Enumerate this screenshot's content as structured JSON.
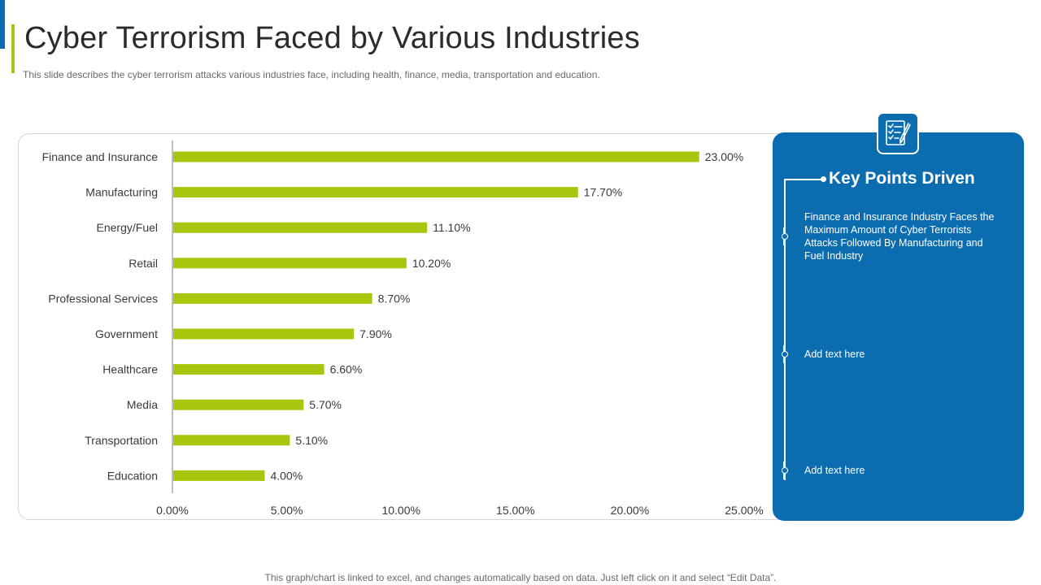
{
  "header": {
    "title": "Cyber Terrorism Faced by Various Industries",
    "subtitle": "This slide describes the cyber terrorism attacks various industries face, including health, finance, media, transportation and education."
  },
  "colors": {
    "bar": "#a8c60e",
    "panel": "#0b6cb0",
    "accent_blue": "#0b6cb0",
    "accent_green": "#a8c60e"
  },
  "chart_data": {
    "type": "bar",
    "orientation": "horizontal",
    "categories": [
      "Finance and Insurance",
      "Manufacturing",
      "Energy/Fuel",
      "Retail",
      "Professional Services",
      "Government",
      "Healthcare",
      "Media",
      "Transportation",
      "Education"
    ],
    "values": [
      23.0,
      17.7,
      11.1,
      10.2,
      8.7,
      7.9,
      6.6,
      5.7,
      5.1,
      4.0
    ],
    "value_labels": [
      "23.00%",
      "17.70%",
      "11.10%",
      "10.20%",
      "8.70%",
      "7.90%",
      "6.60%",
      "5.70%",
      "5.10%",
      "4.00%"
    ],
    "xticks": [
      0,
      5,
      10,
      15,
      20,
      25
    ],
    "xtick_labels": [
      "0.00%",
      "5.00%",
      "10.00%",
      "15.00%",
      "20.00%",
      "25.00%"
    ],
    "xlim": [
      0,
      25
    ],
    "grid": false,
    "title": "",
    "xlabel": "",
    "ylabel": ""
  },
  "key_points": {
    "heading": "Key Points Driven",
    "icon": "checklist-icon",
    "items": [
      "Finance and Insurance Industry Faces the Maximum Amount of Cyber Terrorists Attacks Followed By Manufacturing and Fuel Industry",
      "Add text here",
      "Add text here"
    ]
  },
  "footer": {
    "note": "This graph/chart is linked to excel, and changes automatically based on data. Just left click on it and select “Edit Data”."
  }
}
